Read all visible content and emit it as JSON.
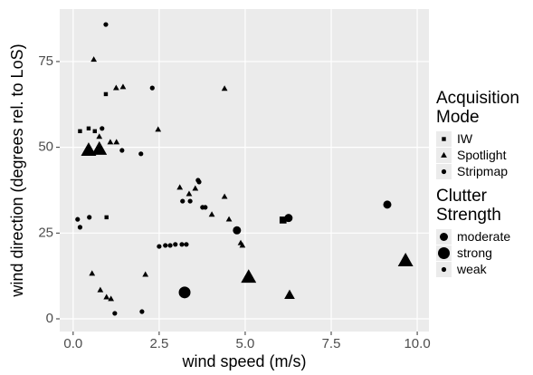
{
  "chart_data": {
    "type": "scatter",
    "xlabel": "wind speed (m/s)",
    "ylabel": "wind direction (degrees rel. to LoS)",
    "xlim": [
      -0.39,
      10.34
    ],
    "ylim": [
      -3.7,
      90.3
    ],
    "xticks": [
      {
        "value": 0,
        "label": "0.0"
      },
      {
        "value": 2.5,
        "label": "2.5"
      },
      {
        "value": 5,
        "label": "5.0"
      },
      {
        "value": 7.5,
        "label": "7.5"
      },
      {
        "value": 10,
        "label": "10.0"
      }
    ],
    "yticks": [
      0,
      25,
      50,
      75
    ],
    "grid": true,
    "color": "#000000",
    "shape_legend": {
      "title": "Acquisition Mode",
      "labels": [
        "IW",
        "Spotlight",
        "Stripmap"
      ],
      "shapes": [
        "square",
        "triangle",
        "circle"
      ]
    },
    "size_legend": {
      "title": "Clutter Strength",
      "labels": [
        "moderate",
        "strong",
        "weak"
      ],
      "radii": [
        4.5,
        6.5,
        2.6
      ]
    },
    "x": [
      0.95,
      0.6,
      0.95,
      1.25,
      1.45,
      2.3,
      4.4,
      0.2,
      0.45,
      0.63,
      0.84,
      0.76,
      2.47,
      1.08,
      1.26,
      1.42,
      0.45,
      0.76,
      1.97,
      3.63,
      3.66,
      3.1,
      3.55,
      4.4,
      3.37,
      3.18,
      3.4,
      3.76,
      3.84,
      4.03,
      4.53,
      4.76,
      4.87,
      6.1,
      6.26,
      9.13,
      0.13,
      0.2,
      0.47,
      0.97,
      4.92,
      2.5,
      2.68,
      2.82,
      2.97,
      3.16,
      3.29,
      9.66,
      0.55,
      2.1,
      5.1,
      0.79,
      3.24,
      6.29,
      0.97,
      1.1,
      1.21,
      2.0
    ],
    "y": [
      85.8,
      75.6,
      65.5,
      67.3,
      67.6,
      67.3,
      67.1,
      54.7,
      55.5,
      54.7,
      55.5,
      53.1,
      55.2,
      51.5,
      51.5,
      49.1,
      49.1,
      49.4,
      48.1,
      40.4,
      39.9,
      38.3,
      38,
      35.6,
      36.4,
      34.3,
      34.3,
      32.5,
      32.5,
      30.4,
      29,
      25.8,
      22.1,
      28.8,
      29.4,
      33.3,
      29,
      26.7,
      29.6,
      29.6,
      21.4,
      21.1,
      21.4,
      21.4,
      21.7,
      21.7,
      21.7,
      16.9,
      13.2,
      12.9,
      12.1,
      8.4,
      7.7,
      6.9,
      6.3,
      5.8,
      1.6,
      2.1
    ],
    "mode": [
      "Stripmap",
      "Spotlight",
      "IW",
      "Spotlight",
      "Spotlight",
      "Stripmap",
      "Spotlight",
      "IW",
      "IW",
      "IW",
      "Stripmap",
      "Spotlight",
      "Spotlight",
      "Spotlight",
      "Spotlight",
      "Stripmap",
      "Spotlight",
      "Spotlight",
      "Stripmap",
      "Stripmap",
      "Stripmap",
      "Spotlight",
      "Spotlight",
      "Spotlight",
      "Spotlight",
      "Stripmap",
      "Stripmap",
      "Stripmap",
      "Stripmap",
      "Spotlight",
      "Spotlight",
      "Stripmap",
      "Spotlight",
      "IW",
      "Stripmap",
      "Stripmap",
      "Stripmap",
      "Stripmap",
      "Stripmap",
      "IW",
      "Spotlight",
      "Stripmap",
      "Stripmap",
      "Stripmap",
      "Stripmap",
      "Stripmap",
      "Stripmap",
      "Spotlight",
      "Spotlight",
      "Spotlight",
      "Spotlight",
      "Spotlight",
      "Stripmap",
      "Spotlight",
      "Spotlight",
      "Spotlight",
      "Stripmap",
      "Stripmap"
    ],
    "strength": [
      "weak",
      "weak",
      "weak",
      "weak",
      "weak",
      "weak",
      "weak",
      "weak",
      "weak",
      "weak",
      "weak",
      "weak",
      "weak",
      "weak",
      "weak",
      "weak",
      "strong",
      "strong",
      "weak",
      "weak",
      "weak",
      "weak",
      "weak",
      "weak",
      "weak",
      "weak",
      "weak",
      "weak",
      "weak",
      "weak",
      "weak",
      "moderate",
      "weak",
      "moderate",
      "moderate",
      "moderate",
      "weak",
      "weak",
      "weak",
      "weak",
      "weak",
      "weak",
      "weak",
      "weak",
      "weak",
      "weak",
      "weak",
      "strong",
      "weak",
      "weak",
      "strong",
      "weak",
      "strong",
      "moderate",
      "weak",
      "weak",
      "weak",
      "weak"
    ]
  }
}
